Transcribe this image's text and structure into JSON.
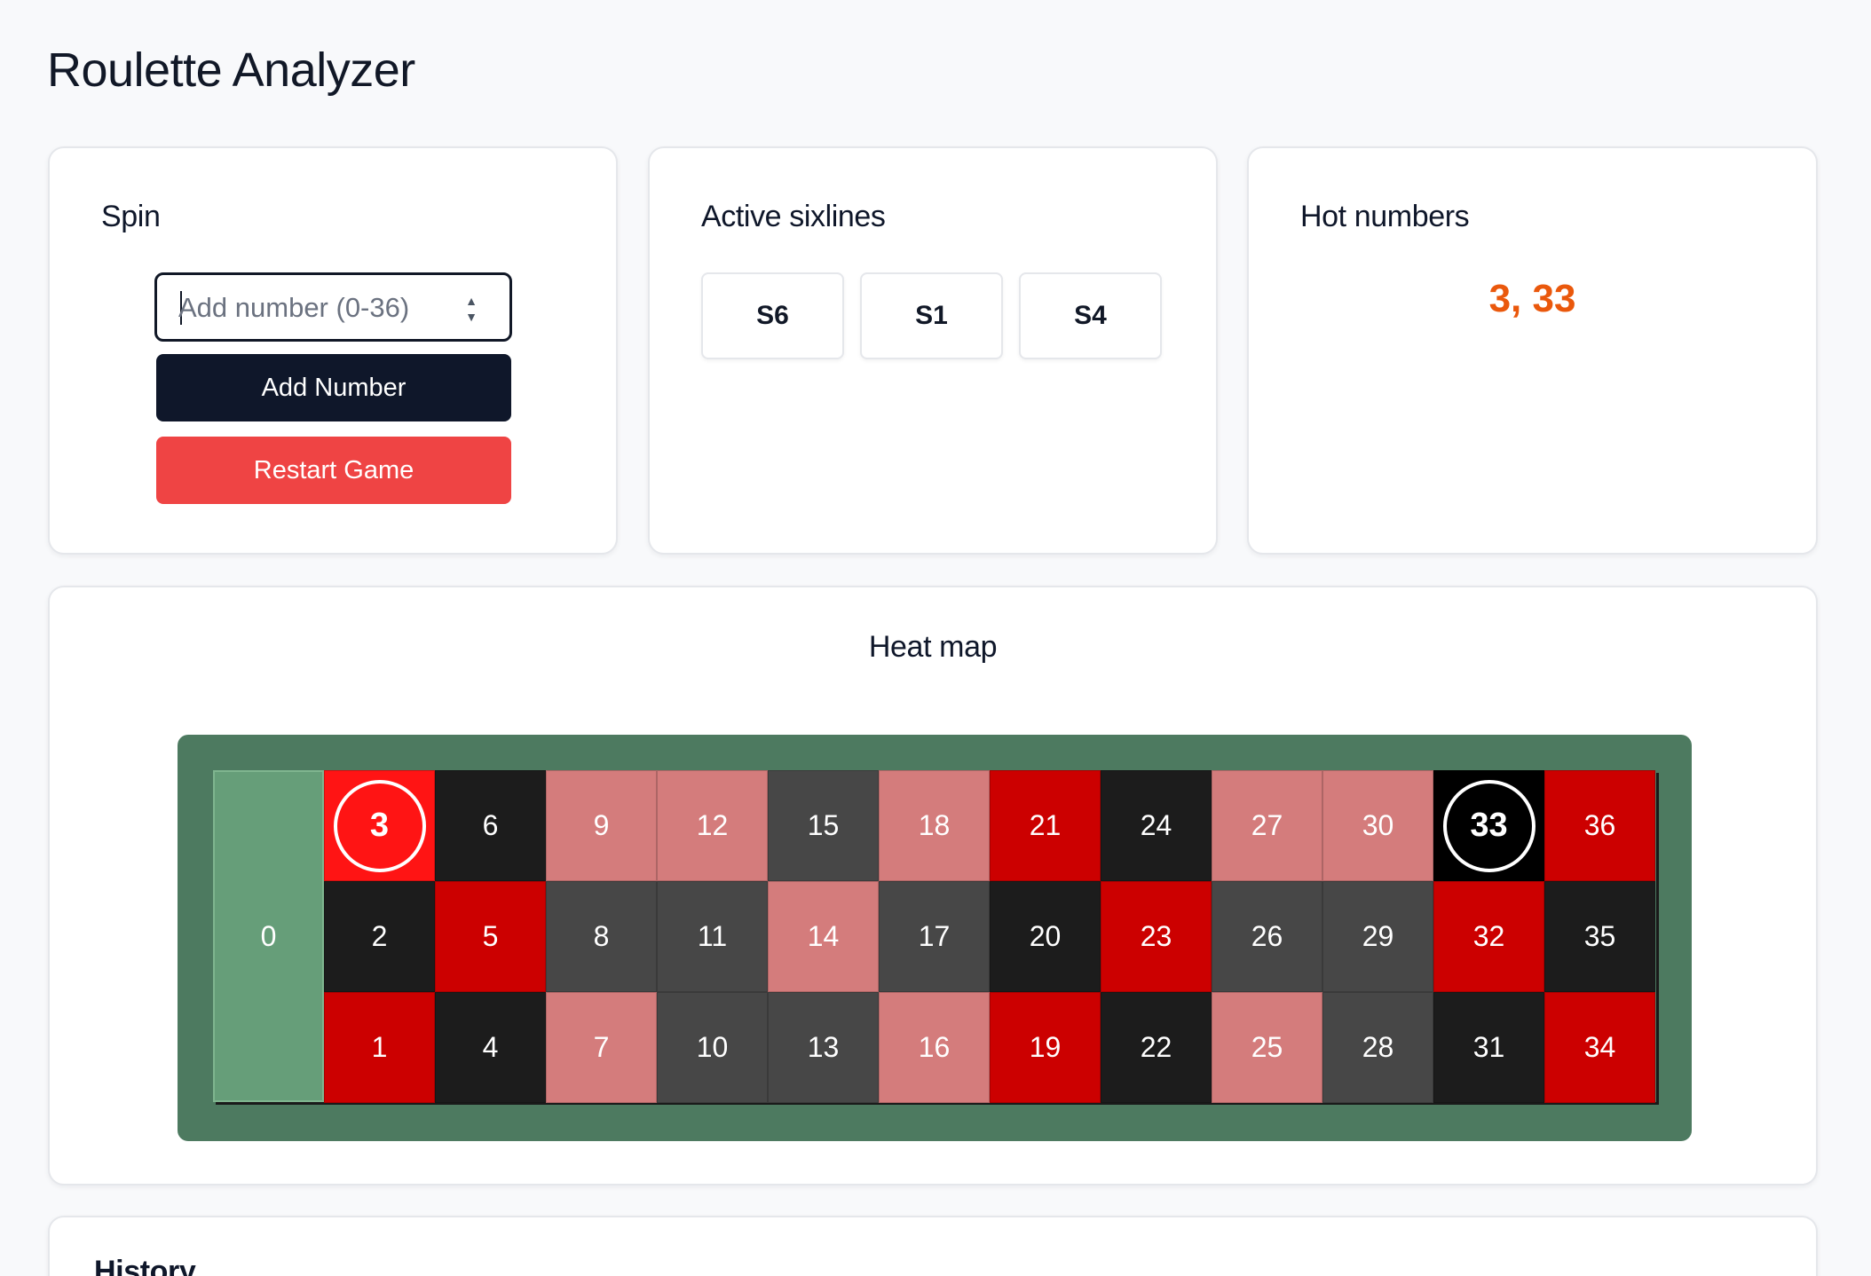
{
  "app": {
    "title": "Roulette Analyzer"
  },
  "spin": {
    "title": "Spin",
    "input_placeholder": "Add number (0-36)",
    "input_value": "",
    "add_label": "Add Number",
    "restart_label": "Restart Game"
  },
  "sixlines": {
    "title": "Active sixlines",
    "items": [
      "S6",
      "S1",
      "S4"
    ]
  },
  "hot": {
    "title": "Hot numbers",
    "values": "3, 33",
    "color": "#ea580c"
  },
  "heatmap": {
    "title": "Heat map",
    "zero": {
      "label": "0",
      "color": "#669e79"
    },
    "palette": {
      "red_hot": "#ff1414",
      "red_high": "#cc0000",
      "red_low": "#d47c7c",
      "black_hot": "#000000",
      "black_high": "#1c1c1c",
      "black_low": "#474747"
    },
    "rows": [
      [
        {
          "n": "3",
          "shade": "red_hot",
          "hot": true
        },
        {
          "n": "6",
          "shade": "black_high"
        },
        {
          "n": "9",
          "shade": "red_low"
        },
        {
          "n": "12",
          "shade": "red_low"
        },
        {
          "n": "15",
          "shade": "black_low"
        },
        {
          "n": "18",
          "shade": "red_low"
        },
        {
          "n": "21",
          "shade": "red_high"
        },
        {
          "n": "24",
          "shade": "black_high"
        },
        {
          "n": "27",
          "shade": "red_low"
        },
        {
          "n": "30",
          "shade": "red_low"
        },
        {
          "n": "33",
          "shade": "black_hot",
          "hot": true
        },
        {
          "n": "36",
          "shade": "red_high"
        }
      ],
      [
        {
          "n": "2",
          "shade": "black_high"
        },
        {
          "n": "5",
          "shade": "red_high"
        },
        {
          "n": "8",
          "shade": "black_low"
        },
        {
          "n": "11",
          "shade": "black_low"
        },
        {
          "n": "14",
          "shade": "red_low"
        },
        {
          "n": "17",
          "shade": "black_low"
        },
        {
          "n": "20",
          "shade": "black_high"
        },
        {
          "n": "23",
          "shade": "red_high"
        },
        {
          "n": "26",
          "shade": "black_low"
        },
        {
          "n": "29",
          "shade": "black_low"
        },
        {
          "n": "32",
          "shade": "red_high"
        },
        {
          "n": "35",
          "shade": "black_high"
        }
      ],
      [
        {
          "n": "1",
          "shade": "red_high"
        },
        {
          "n": "4",
          "shade": "black_high"
        },
        {
          "n": "7",
          "shade": "red_low"
        },
        {
          "n": "10",
          "shade": "black_low"
        },
        {
          "n": "13",
          "shade": "black_low"
        },
        {
          "n": "16",
          "shade": "red_low"
        },
        {
          "n": "19",
          "shade": "red_high"
        },
        {
          "n": "22",
          "shade": "black_high"
        },
        {
          "n": "25",
          "shade": "red_low"
        },
        {
          "n": "28",
          "shade": "black_low"
        },
        {
          "n": "31",
          "shade": "black_high"
        },
        {
          "n": "34",
          "shade": "red_high"
        }
      ]
    ]
  },
  "history": {
    "title": "History"
  }
}
